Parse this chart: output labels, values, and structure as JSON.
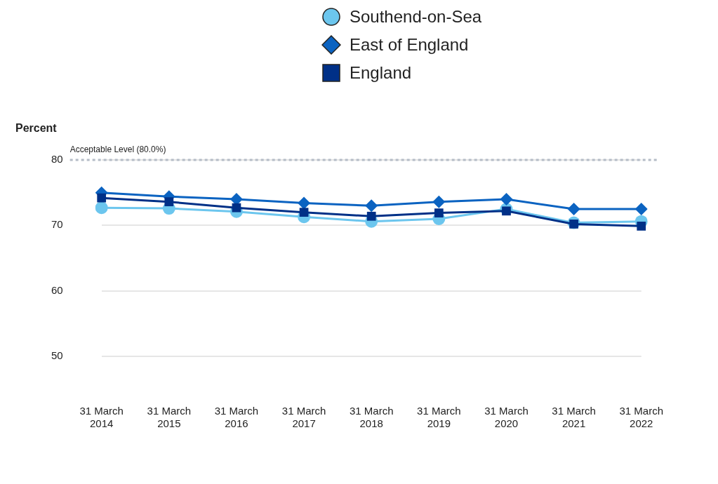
{
  "chart_data": {
    "type": "line",
    "ylabel": "Percent",
    "categories": [
      "31 March 2014",
      "31 March 2015",
      "31 March 2016",
      "31 March 2017",
      "31 March 2018",
      "31 March 2019",
      "31 March 2020",
      "31 March 2021",
      "31 March 2022"
    ],
    "series": [
      {
        "name": "Southend-on-Sea",
        "color": "#6cc6ee",
        "marker": "circle",
        "values": [
          72.7,
          72.6,
          72.1,
          71.3,
          70.6,
          71.0,
          72.5,
          70.4,
          70.6
        ]
      },
      {
        "name": "East of England",
        "color": "#0b63c1",
        "marker": "diamond",
        "values": [
          75.0,
          74.4,
          74.0,
          73.4,
          73.0,
          73.6,
          74.0,
          72.5,
          72.5
        ]
      },
      {
        "name": "England",
        "color": "#003087",
        "marker": "square",
        "values": [
          74.2,
          73.6,
          72.7,
          72.0,
          71.4,
          71.9,
          72.2,
          70.2,
          69.9
        ]
      }
    ],
    "ylim": [
      50,
      80
    ],
    "yticks": [
      50,
      60,
      70,
      80
    ],
    "grid": "y",
    "legend": "top",
    "ref_lines": [
      {
        "axis": "y",
        "value": 80,
        "label": "Acceptable Level (80.0%)",
        "color": "#b4bcc6",
        "line_style": "dotted"
      }
    ]
  }
}
